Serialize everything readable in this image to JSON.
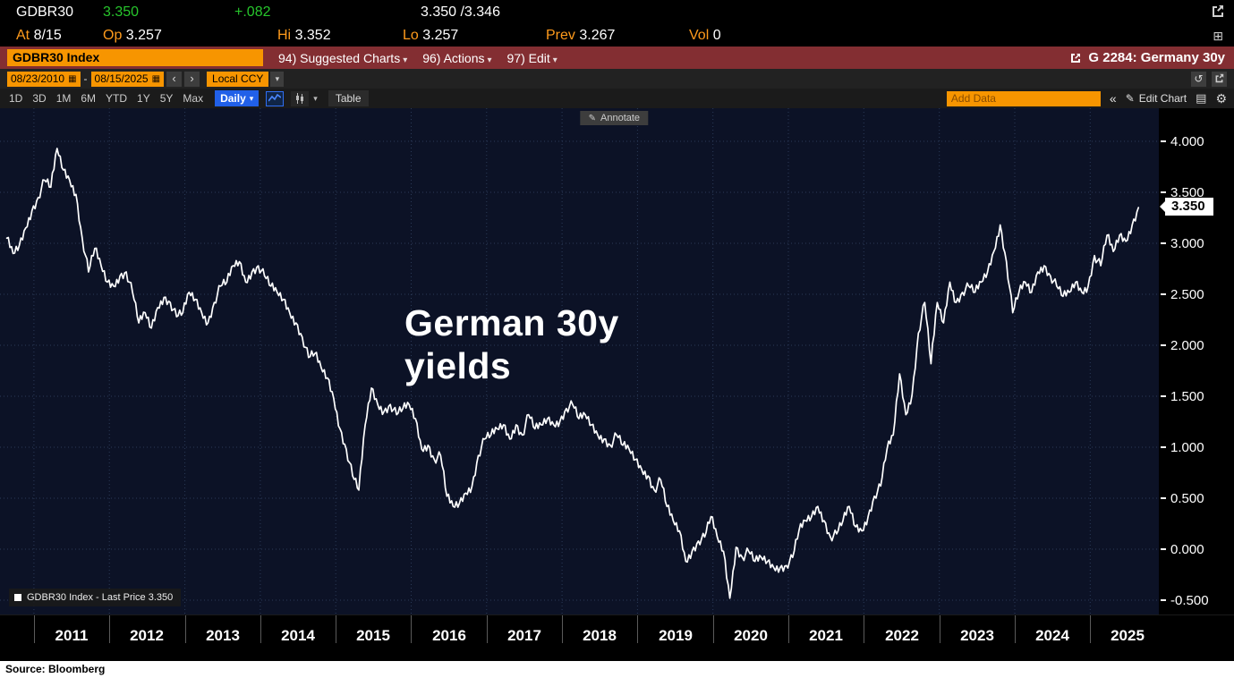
{
  "icons": {
    "calendar": "▦",
    "caret_down": "▾",
    "prev": "‹",
    "next": "›",
    "undo": "↺",
    "grid": "⊞",
    "gear": "⚙",
    "pencil": "✎",
    "collapse": "«",
    "chart_note": "▤"
  },
  "header": {
    "ticker": "GDBR30",
    "last": "3.350",
    "change": "+.082",
    "bid_ask": "3.350 /3.346",
    "fields": [
      {
        "label": "At",
        "value": "8/15"
      },
      {
        "label": "Op",
        "value": "3.257"
      },
      {
        "label": "Hi",
        "value": "3.352"
      },
      {
        "label": "Lo",
        "value": "3.257"
      },
      {
        "label": "Prev",
        "value": "3.267"
      },
      {
        "label": "Vol",
        "value": "0"
      }
    ]
  },
  "menubar": {
    "security": "GDBR30 Index",
    "items": [
      {
        "key": "94)",
        "label": "Suggested Charts"
      },
      {
        "key": "96)",
        "label": "Actions"
      },
      {
        "key": "97)",
        "label": "Edit"
      }
    ],
    "page_ref": "G 2284: Germany 30y"
  },
  "rangebar": {
    "start_date": "08/23/2010",
    "separator": "-",
    "end_date": "08/15/2025",
    "currency": "Local CCY"
  },
  "toolbar": {
    "periods": [
      "1D",
      "3D",
      "1M",
      "6M",
      "YTD",
      "1Y",
      "5Y",
      "Max"
    ],
    "frequency": "Daily",
    "table_label": "Table",
    "add_data_placeholder": "Add Data",
    "edit_chart_label": "Edit Chart"
  },
  "chart": {
    "annotate_label": "Annotate",
    "title_line1": "German 30y",
    "title_line2": "yields",
    "legend": "GDBR30 Index - Last Price 3.350",
    "last_badge": "3.350"
  },
  "chart_data": {
    "type": "line",
    "title": "German 30y yields",
    "xlim": [
      2010.55,
      2025.91
    ],
    "ylim": [
      -0.64,
      4.325
    ],
    "grid": "dotted",
    "legend_position": "bottom-left",
    "x_ticks": [
      "2011",
      "2012",
      "2013",
      "2014",
      "2015",
      "2016",
      "2017",
      "2018",
      "2019",
      "2020",
      "2021",
      "2022",
      "2023",
      "2024",
      "2025"
    ],
    "y_ticks": [
      "4.000",
      "3.500",
      "3.000",
      "2.500",
      "2.000",
      "1.500",
      "1.000",
      "0.500",
      "0.000",
      "-0.500"
    ],
    "last_value": 3.35,
    "series": [
      {
        "name": "GDBR30 Index - Last Price",
        "color": "#ffffff",
        "start_decimal_year": 2010.64,
        "step_years": 0.083333,
        "values": [
          3.05,
          2.9,
          2.98,
          3.15,
          3.32,
          3.45,
          3.62,
          3.55,
          3.93,
          3.72,
          3.62,
          3.48,
          3.05,
          2.72,
          2.95,
          2.78,
          2.62,
          2.58,
          2.68,
          2.72,
          2.52,
          2.22,
          2.32,
          2.17,
          2.37,
          2.47,
          2.42,
          2.28,
          2.32,
          2.52,
          2.45,
          2.32,
          2.22,
          2.42,
          2.58,
          2.62,
          2.78,
          2.82,
          2.62,
          2.72,
          2.78,
          2.68,
          2.58,
          2.52,
          2.45,
          2.32,
          2.22,
          2.08,
          1.88,
          1.92,
          1.78,
          1.68,
          1.48,
          1.18,
          0.98,
          0.72,
          0.58,
          1.22,
          1.58,
          1.42,
          1.35,
          1.42,
          1.32,
          1.38,
          1.42,
          1.28,
          0.98,
          1.02,
          0.88,
          0.92,
          0.52,
          0.42,
          0.45,
          0.55,
          0.62,
          0.92,
          1.08,
          1.12,
          1.18,
          1.22,
          1.08,
          1.22,
          1.12,
          1.32,
          1.18,
          1.22,
          1.28,
          1.22,
          1.26,
          1.38,
          1.42,
          1.28,
          1.32,
          1.22,
          1.12,
          1.08,
          1.02,
          1.12,
          1.02,
          0.98,
          0.88,
          0.78,
          0.72,
          0.58,
          0.68,
          0.42,
          0.28,
          0.18,
          -0.12,
          -0.02,
          0.08,
          0.12,
          0.32,
          0.12,
          -0.02,
          -0.48,
          0.02,
          -0.08,
          -0.02,
          -0.12,
          -0.08,
          -0.12,
          -0.18,
          -0.18,
          -0.16,
          -0.08,
          0.18,
          0.28,
          0.32,
          0.42,
          0.28,
          0.12,
          0.15,
          0.28,
          0.42,
          0.22,
          0.18,
          0.32,
          0.52,
          0.62,
          0.98,
          1.12,
          1.72,
          1.32,
          1.52,
          2.12,
          2.42,
          1.82,
          2.42,
          2.22,
          2.62,
          2.42,
          2.52,
          2.58,
          2.52,
          2.62,
          2.72,
          2.92,
          3.18,
          2.82,
          2.32,
          2.52,
          2.62,
          2.52,
          2.72,
          2.78,
          2.68,
          2.58,
          2.48,
          2.52,
          2.62,
          2.52,
          2.58,
          2.88,
          2.78,
          3.08,
          2.92,
          3.08,
          3.02,
          3.18,
          3.35
        ]
      }
    ]
  },
  "footer": {
    "source": "Source: Bloomberg"
  }
}
